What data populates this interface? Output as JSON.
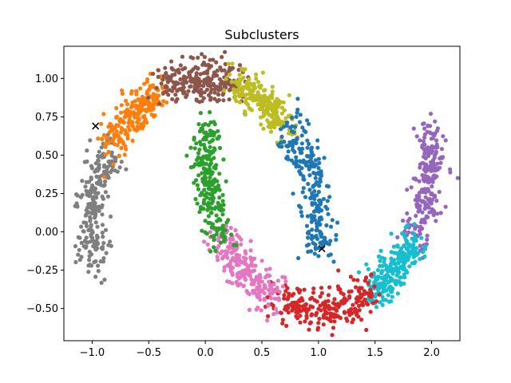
{
  "chart_data": {
    "type": "scatter",
    "title": "Subclusters",
    "xlabel": "",
    "ylabel": "",
    "xlim": [
      -1.25,
      2.25
    ],
    "ylim": [
      -0.71,
      1.21
    ],
    "x_ticks": [
      "−1.0",
      "−0.5",
      "0.0",
      "0.5",
      "1.0",
      "1.5",
      "2.0"
    ],
    "y_ticks": [
      "−0.50",
      "−0.25",
      "0.00",
      "0.25",
      "0.50",
      "0.75",
      "1.00"
    ],
    "x_tick_values": [
      -1.0,
      -0.5,
      0.0,
      0.5,
      1.0,
      1.5,
      2.0
    ],
    "y_tick_values": [
      -0.5,
      -0.25,
      0.0,
      0.25,
      0.5,
      0.75,
      1.0
    ],
    "grid": false,
    "noise_sd": 0.065,
    "points_per_cluster": 240,
    "clusters": [
      {
        "color": "#7f7f7f",
        "moon": "upper",
        "angle_start": 2.55,
        "angle_end": 3.35
      },
      {
        "color": "#ff7f0e",
        "moon": "upper",
        "angle_start": 1.95,
        "angle_end": 2.55
      },
      {
        "color": "#8c564b",
        "moon": "upper",
        "angle_start": 1.3,
        "angle_end": 1.95
      },
      {
        "color": "#bcbd22",
        "moon": "upper",
        "angle_start": 0.75,
        "angle_end": 1.3
      },
      {
        "color": "#1f77b4",
        "moon": "upper",
        "angle_start": -0.15,
        "angle_end": 0.75
      },
      {
        "color": "#9467bd",
        "moon": "lower",
        "angle_start": 3.3,
        "angle_end": 2.55
      },
      {
        "color": "#17becf",
        "moon": "lower",
        "angle_start": 2.55,
        "angle_end": 2.05
      },
      {
        "color": "#d62728",
        "moon": "lower",
        "angle_start": 2.05,
        "angle_end": 1.2
      },
      {
        "color": "#e377c2",
        "moon": "lower",
        "angle_start": 1.2,
        "angle_end": 0.55
      },
      {
        "color": "#2ca02c",
        "moon": "lower",
        "angle_start": 0.55,
        "angle_end": -0.2
      }
    ],
    "markers": [
      {
        "x": -0.97,
        "y": 0.69,
        "symbol": "x"
      },
      {
        "x": 1.03,
        "y": -0.11,
        "symbol": "x"
      }
    ]
  }
}
